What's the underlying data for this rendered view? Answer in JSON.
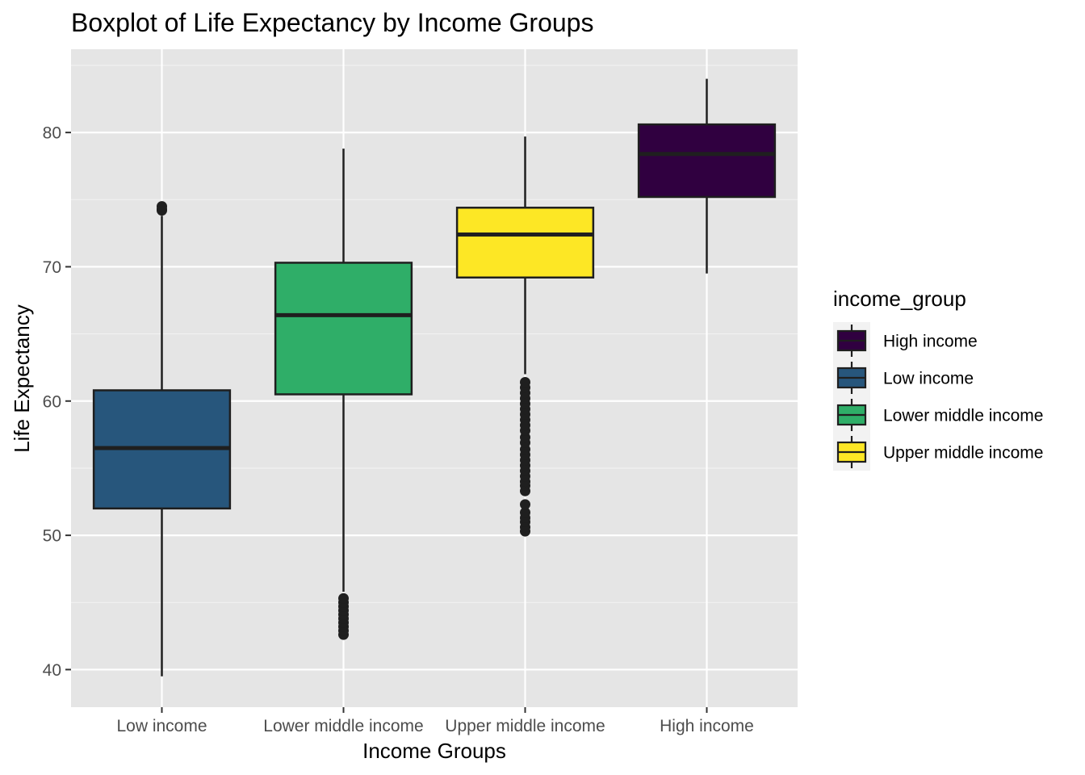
{
  "chart_data": {
    "type": "boxplot",
    "title": "Boxplot of Life Expectancy by Income Groups",
    "xlabel": "Income Groups",
    "ylabel": "Life Expectancy",
    "ylim": [
      37.2,
      86.2
    ],
    "yticks": [
      40,
      50,
      60,
      70,
      80
    ],
    "ytick_labels": [
      "40",
      "50",
      "60",
      "70",
      "80"
    ],
    "grid": true,
    "categories": [
      "Low income",
      "Lower middle income",
      "Upper middle income",
      "High income"
    ],
    "series": [
      {
        "name": "Low income",
        "color": "#27567c",
        "whisker_low": 39.5,
        "q1": 52.0,
        "median": 56.5,
        "q3": 60.8,
        "whisker_high": 73.8,
        "outliers": [
          74.2,
          74.3,
          74.5
        ]
      },
      {
        "name": "Lower middle income",
        "color": "#2fae68",
        "whisker_low": 45.8,
        "q1": 60.5,
        "median": 66.4,
        "q3": 70.3,
        "whisker_high": 78.8,
        "outliers": [
          42.6,
          42.9,
          43.2,
          43.5,
          43.8,
          44.1,
          44.4,
          44.7,
          45.0,
          45.3
        ]
      },
      {
        "name": "Upper middle income",
        "color": "#fde725",
        "whisker_low": 62.0,
        "q1": 69.2,
        "median": 72.4,
        "q3": 74.4,
        "whisker_high": 79.7,
        "outliers": [
          50.3,
          50.6,
          51.0,
          51.3,
          51.7,
          52.3,
          53.3,
          53.7,
          54.0,
          54.4,
          54.8,
          55.2,
          55.6,
          56.0,
          56.4,
          56.9,
          57.3,
          57.8,
          58.2,
          58.6,
          59.0,
          59.4,
          59.8,
          60.2,
          60.6,
          61.0,
          61.4
        ]
      },
      {
        "name": "High income",
        "color": "#300040",
        "whisker_low": 69.5,
        "q1": 75.2,
        "median": 78.4,
        "q3": 80.6,
        "whisker_high": 84.0,
        "outliers": []
      }
    ],
    "legend": {
      "title": "income_group",
      "position": "right",
      "entries": [
        {
          "label": "High income",
          "color": "#300040"
        },
        {
          "label": "Low income",
          "color": "#27567c"
        },
        {
          "label": "Lower middle income",
          "color": "#2fae68"
        },
        {
          "label": "Upper middle income",
          "color": "#fde725"
        }
      ]
    },
    "colors": {
      "panel_background": "#e5e5e5",
      "grid_major": "#ffffff",
      "grid_minor": "#f2f2f2",
      "box_outline": "#1f1f1f",
      "legend_key_background": "#f2f2f2"
    }
  }
}
